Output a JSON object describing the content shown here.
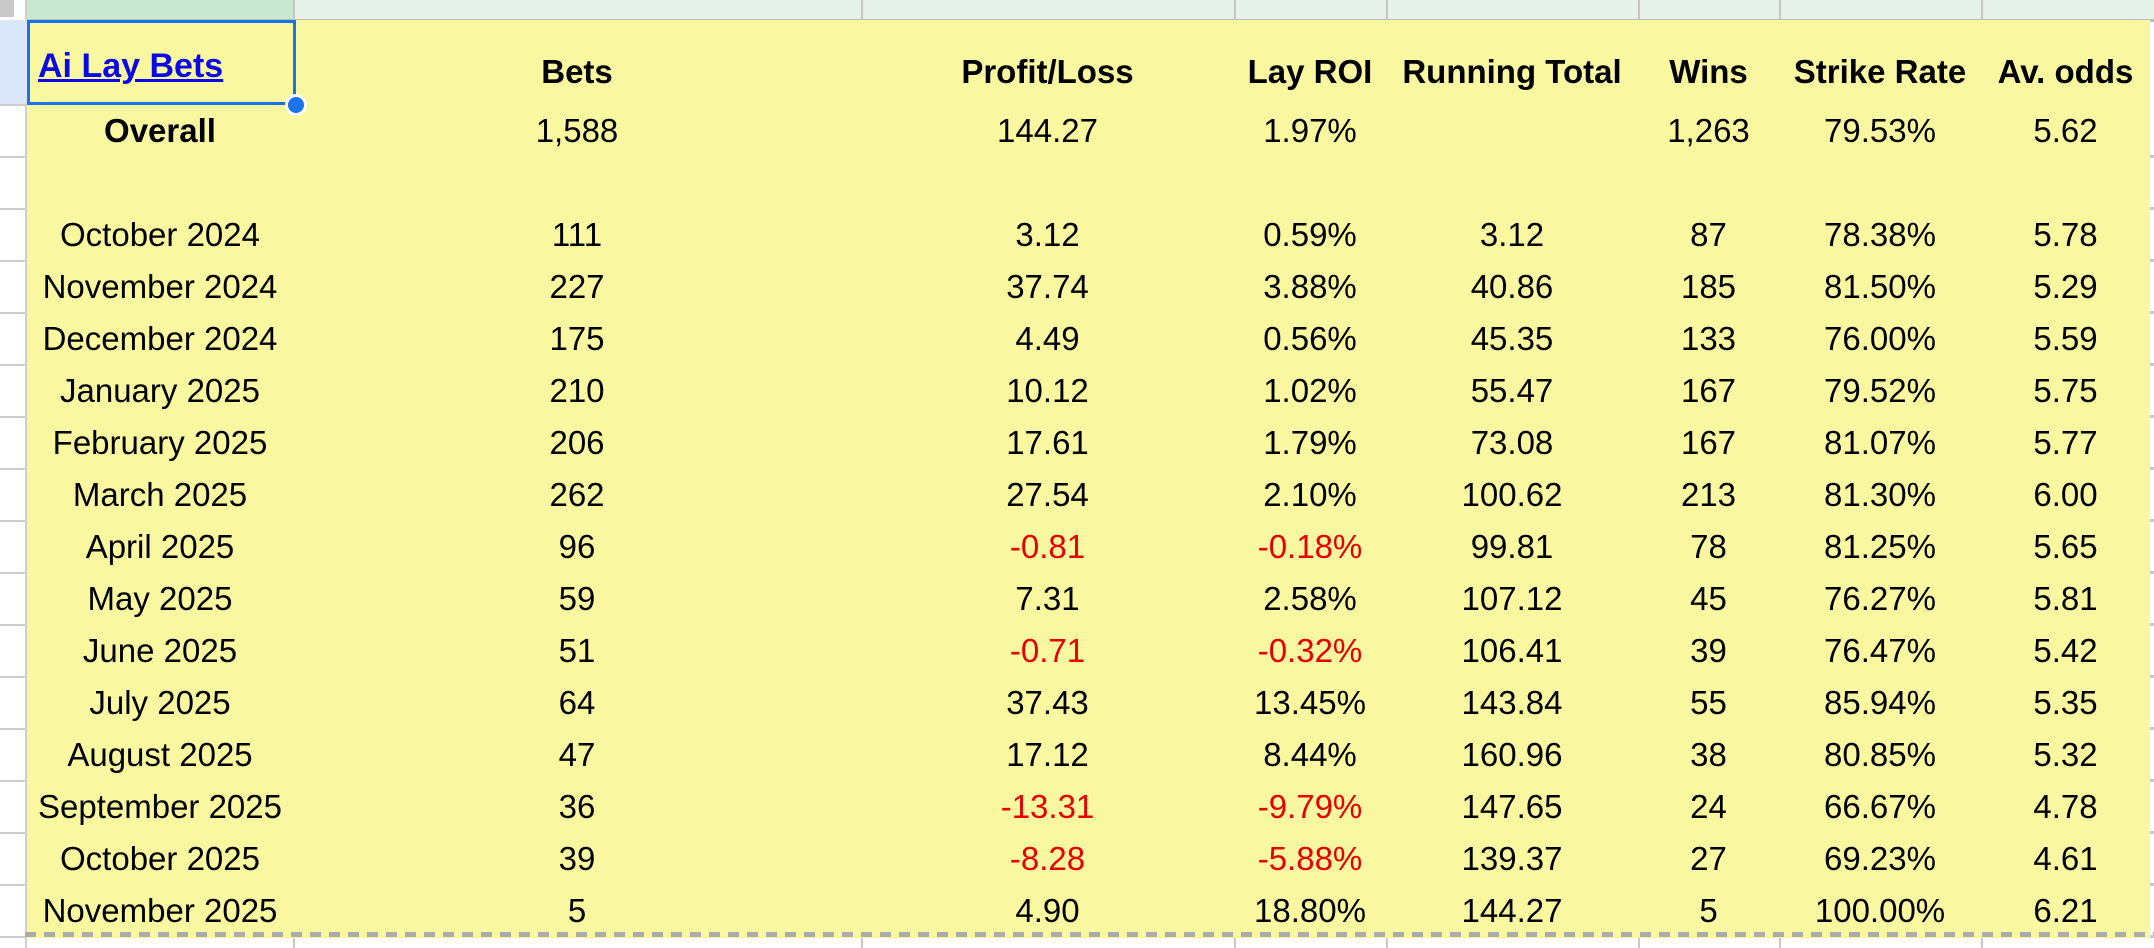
{
  "link": {
    "text": "Ai Lay Bets"
  },
  "colors": {
    "highlight_yellow": "#FAF7A1",
    "negative_red": "#E80000",
    "link_blue": "#0A0AE6",
    "selection_blue": "#1A73E8",
    "cell_above_dark_green": "#C9E8D1",
    "cell_above_light_green": "#E6F2E9",
    "active_row_edge_blue": "#DCE6F9"
  },
  "table": {
    "columns": [
      {
        "key": "label",
        "label": ""
      },
      {
        "key": "bets",
        "label": "Bets"
      },
      {
        "key": "profit",
        "label": "Profit/Loss"
      },
      {
        "key": "roi",
        "label": "Lay ROI"
      },
      {
        "key": "running",
        "label": "Running Total"
      },
      {
        "key": "wins",
        "label": "Wins"
      },
      {
        "key": "strike",
        "label": "Strike Rate"
      },
      {
        "key": "avodds",
        "label": "Av. odds"
      }
    ],
    "rows": [
      {
        "label": "Overall",
        "bets": "1,588",
        "profit": "144.27",
        "roi": "1.97%",
        "running": "",
        "wins": "1,263",
        "strike": "79.53%",
        "avodds": "5.62",
        "bold": true
      },
      {
        "label": "",
        "bets": "",
        "profit": "",
        "roi": "",
        "running": "",
        "wins": "",
        "strike": "",
        "avodds": ""
      },
      {
        "label": "October 2024",
        "bets": "111",
        "profit": "3.12",
        "roi": "0.59%",
        "running": "3.12",
        "wins": "87",
        "strike": "78.38%",
        "avodds": "5.78"
      },
      {
        "label": "November 2024",
        "bets": "227",
        "profit": "37.74",
        "roi": "3.88%",
        "running": "40.86",
        "wins": "185",
        "strike": "81.50%",
        "avodds": "5.29"
      },
      {
        "label": "December 2024",
        "bets": "175",
        "profit": "4.49",
        "roi": "0.56%",
        "running": "45.35",
        "wins": "133",
        "strike": "76.00%",
        "avodds": "5.59"
      },
      {
        "label": "January 2025",
        "bets": "210",
        "profit": "10.12",
        "roi": "1.02%",
        "running": "55.47",
        "wins": "167",
        "strike": "79.52%",
        "avodds": "5.75"
      },
      {
        "label": "February 2025",
        "bets": "206",
        "profit": "17.61",
        "roi": "1.79%",
        "running": "73.08",
        "wins": "167",
        "strike": "81.07%",
        "avodds": "5.77"
      },
      {
        "label": "March 2025",
        "bets": "262",
        "profit": "27.54",
        "roi": "2.10%",
        "running": "100.62",
        "wins": "213",
        "strike": "81.30%",
        "avodds": "6.00"
      },
      {
        "label": "April 2025",
        "bets": "96",
        "profit": "-0.81",
        "roi": "-0.18%",
        "running": "99.81",
        "wins": "78",
        "strike": "81.25%",
        "avodds": "5.65"
      },
      {
        "label": "May 2025",
        "bets": "59",
        "profit": "7.31",
        "roi": "2.58%",
        "running": "107.12",
        "wins": "45",
        "strike": "76.27%",
        "avodds": "5.81"
      },
      {
        "label": "June 2025",
        "bets": "51",
        "profit": "-0.71",
        "roi": "-0.32%",
        "running": "106.41",
        "wins": "39",
        "strike": "76.47%",
        "avodds": "5.42"
      },
      {
        "label": "July 2025",
        "bets": "64",
        "profit": "37.43",
        "roi": "13.45%",
        "running": "143.84",
        "wins": "55",
        "strike": "85.94%",
        "avodds": "5.35"
      },
      {
        "label": "August 2025",
        "bets": "47",
        "profit": "17.12",
        "roi": "8.44%",
        "running": "160.96",
        "wins": "38",
        "strike": "80.85%",
        "avodds": "5.32"
      },
      {
        "label": "September 2025",
        "bets": "36",
        "profit": "-13.31",
        "roi": "-9.79%",
        "running": "147.65",
        "wins": "24",
        "strike": "66.67%",
        "avodds": "4.78"
      },
      {
        "label": "October 2025",
        "bets": "39",
        "profit": "-8.28",
        "roi": "-5.88%",
        "running": "139.37",
        "wins": "27",
        "strike": "69.23%",
        "avodds": "4.61"
      },
      {
        "label": "November 2025",
        "bets": "5",
        "profit": "4.90",
        "roi": "18.80%",
        "running": "144.27",
        "wins": "5",
        "strike": "100.00%",
        "avodds": "6.21"
      }
    ]
  }
}
